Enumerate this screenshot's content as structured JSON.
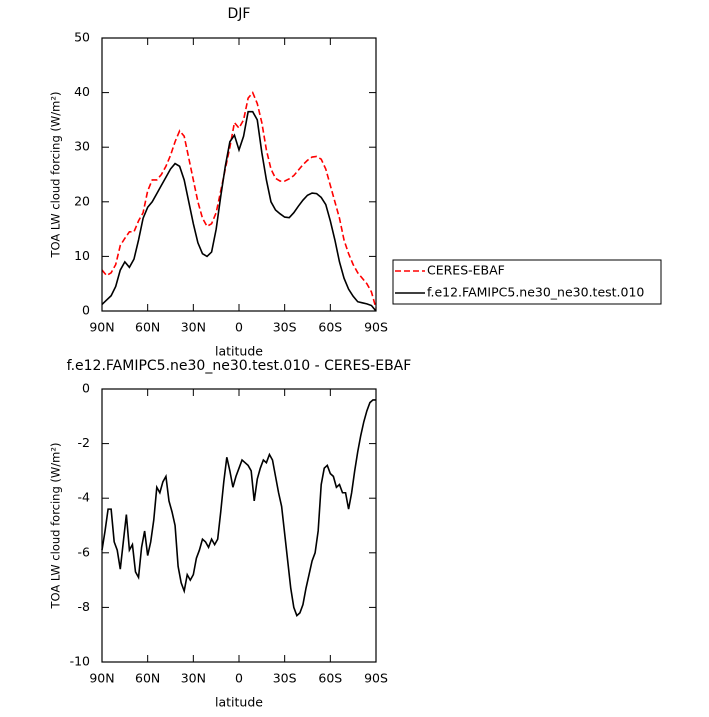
{
  "chart_data": [
    {
      "type": "line",
      "title": "DJF",
      "x_label": "latitude",
      "y_label": "TOA LW cloud forcing (W/m²)",
      "x": [
        90,
        87,
        84,
        81,
        78,
        75,
        72,
        69,
        66,
        63,
        60,
        57,
        54,
        51,
        48,
        45,
        42,
        39,
        36,
        33,
        30,
        27,
        24,
        21,
        18,
        15,
        12,
        9,
        6,
        3,
        0,
        -3,
        -6,
        -9,
        -12,
        -15,
        -18,
        -21,
        -24,
        -27,
        -30,
        -33,
        -36,
        -39,
        -42,
        -45,
        -48,
        -51,
        -54,
        -57,
        -60,
        -63,
        -66,
        -69,
        -72,
        -75,
        -78,
        -81,
        -84,
        -87,
        -90
      ],
      "series": [
        {
          "name": "CERES-EBAF",
          "color": "#ff0000",
          "dashed": true,
          "values": [
            7.5,
            6.5,
            7,
            8.5,
            12,
            13.3,
            14.5,
            14.5,
            16.5,
            18,
            22,
            24,
            24,
            25,
            26.5,
            28.5,
            31,
            33,
            32,
            28,
            24,
            20,
            17,
            15.5,
            16,
            18,
            22,
            26,
            30,
            34.5,
            33.5,
            35,
            39,
            40,
            38,
            34.5,
            29.5,
            26,
            24.3,
            23.8,
            23.8,
            24.2,
            24.8,
            25.8,
            26.8,
            27.6,
            28.2,
            28.3,
            27.8,
            26,
            23,
            20,
            17,
            13,
            10.5,
            8.5,
            7,
            6,
            5,
            3.5,
            0.5
          ]
        },
        {
          "name": "f.e12.FAMIPC5.ne30_ne30.test.010",
          "color": "#000000",
          "dashed": false,
          "values": [
            1.2,
            2,
            2.8,
            4.5,
            7.5,
            9,
            8,
            9.5,
            13,
            17,
            19,
            20,
            21.5,
            23,
            24.5,
            26,
            27,
            26.5,
            24,
            20,
            16,
            12.5,
            10.5,
            10,
            10.8,
            15,
            21,
            26.5,
            31,
            32.2,
            29.5,
            32,
            36.5,
            36.5,
            35,
            29,
            24,
            20,
            18.5,
            17.8,
            17.2,
            17.1,
            18,
            19.2,
            20.3,
            21.2,
            21.6,
            21.5,
            20.8,
            19.5,
            16.5,
            13,
            9,
            6,
            4,
            2.7,
            1.7,
            1.5,
            1.3,
            1,
            0
          ]
        }
      ],
      "xlim": [
        90,
        -90
      ],
      "xticks": [
        {
          "value": 90,
          "label": "90N"
        },
        {
          "value": 60,
          "label": "60N"
        },
        {
          "value": 30,
          "label": "30N"
        },
        0,
        {
          "value": -30,
          "label": "30S"
        },
        {
          "value": -60,
          "label": "60S"
        },
        {
          "value": -90,
          "label": "90S"
        }
      ],
      "ylim": [
        0,
        50
      ],
      "yticks": [
        0,
        10,
        20,
        30,
        40,
        50
      ],
      "legend": "right"
    },
    {
      "type": "line",
      "title": "f.e12.FAMIPC5.ne30_ne30.test.010 - CERES-EBAF",
      "x_label": "latitude",
      "y_label": "TOA LW cloud forcing (W/m²)",
      "x": [
        90,
        88,
        86,
        84,
        82,
        80,
        78,
        76,
        74,
        72,
        70,
        68,
        66,
        64,
        62,
        60,
        58,
        56,
        54,
        52,
        50,
        48,
        46,
        44,
        42,
        40,
        38,
        36,
        34,
        32,
        30,
        28,
        26,
        24,
        22,
        20,
        18,
        16,
        14,
        12,
        10,
        8,
        6,
        4,
        2,
        0,
        -2,
        -4,
        -6,
        -8,
        -10,
        -12,
        -14,
        -16,
        -18,
        -20,
        -22,
        -24,
        -26,
        -28,
        -30,
        -32,
        -34,
        -36,
        -38,
        -40,
        -42,
        -44,
        -46,
        -48,
        -50,
        -52,
        -54,
        -56,
        -58,
        -60,
        -62,
        -64,
        -66,
        -68,
        -70,
        -72,
        -74,
        -76,
        -78,
        -80,
        -82,
        -84,
        -86,
        -88,
        -90
      ],
      "series": [
        {
          "name": "f.e12.FAMIPC5.ne30_ne30.test.010 - CERES-EBAF",
          "color": "#000000",
          "dashed": false,
          "values": [
            -5.9,
            -5.2,
            -4.4,
            -4.4,
            -5.6,
            -5.9,
            -6.6,
            -5.6,
            -4.6,
            -5.9,
            -5.7,
            -6.7,
            -6.9,
            -5.8,
            -5.2,
            -6.1,
            -5.6,
            -4.8,
            -3.6,
            -3.8,
            -3.4,
            -3.2,
            -4.1,
            -4.5,
            -5.0,
            -6.5,
            -7.1,
            -7.4,
            -6.8,
            -7.0,
            -6.8,
            -6.2,
            -5.9,
            -5.5,
            -5.6,
            -5.8,
            -5.5,
            -5.7,
            -5.5,
            -4.5,
            -3.4,
            -2.5,
            -3.0,
            -3.6,
            -3.2,
            -2.9,
            -2.6,
            -2.7,
            -2.8,
            -3.0,
            -4.1,
            -3.3,
            -2.9,
            -2.6,
            -2.7,
            -2.4,
            -2.6,
            -3.2,
            -3.8,
            -4.3,
            -5.3,
            -6.3,
            -7.3,
            -8.0,
            -8.3,
            -8.2,
            -7.9,
            -7.3,
            -6.8,
            -6.3,
            -6.0,
            -5.2,
            -3.5,
            -2.9,
            -2.8,
            -3.1,
            -3.2,
            -3.6,
            -3.5,
            -3.8,
            -3.8,
            -4.4,
            -3.8,
            -3.0,
            -2.3,
            -1.7,
            -1.2,
            -0.8,
            -0.5,
            -0.4,
            -0.4
          ]
        }
      ],
      "xlim": [
        90,
        -90
      ],
      "xticks": [
        {
          "value": 90,
          "label": "90N"
        },
        {
          "value": 60,
          "label": "60N"
        },
        {
          "value": 30,
          "label": "30N"
        },
        0,
        {
          "value": -30,
          "label": "30S"
        },
        {
          "value": -60,
          "label": "60S"
        },
        {
          "value": -90,
          "label": "90S"
        }
      ],
      "ylim": [
        -10,
        0
      ],
      "yticks": [
        -10,
        -8,
        -6,
        -4,
        -2,
        0
      ]
    }
  ]
}
